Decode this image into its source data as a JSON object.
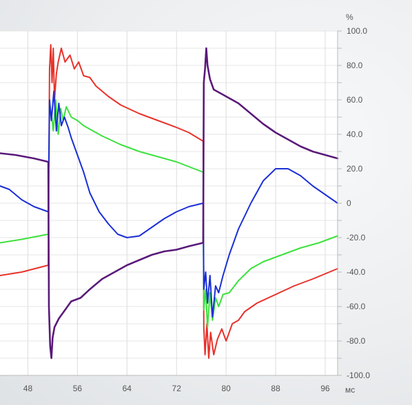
{
  "chart_data": {
    "type": "line",
    "title": "",
    "xlabel": "мс",
    "ylabel": "%",
    "xlim": [
      43.5,
      98
    ],
    "ylim": [
      -100,
      100
    ],
    "grid": true,
    "x_ticks": [
      48,
      56,
      64,
      72,
      80,
      88,
      96
    ],
    "x_tick_labels": [
      "48",
      "56",
      "64",
      "72",
      "80",
      "88",
      "96"
    ],
    "y_ticks": [
      100,
      80,
      60,
      40,
      20,
      0,
      -20,
      -40,
      -60,
      -80,
      -100
    ],
    "y_tick_labels": [
      "100.0",
      "80.0",
      "60.0",
      "40.0",
      "20.0",
      "0",
      "-20.0",
      "-40.0",
      "-60.0",
      "-80.0",
      "-100.0"
    ],
    "colors": {
      "red": "#e8322a",
      "green": "#3ce13c",
      "blue": "#1a2fd6",
      "purple": "#5a1a7a"
    },
    "series": [
      {
        "color_key": "red",
        "points": [
          [
            43.5,
            -42
          ],
          [
            47,
            -40
          ],
          [
            51.3,
            -36
          ],
          [
            51.5,
            78
          ],
          [
            51.7,
            92
          ],
          [
            51.9,
            70
          ],
          [
            52.1,
            90
          ],
          [
            52.3,
            60
          ],
          [
            52.6,
            75
          ],
          [
            52.9,
            82
          ],
          [
            53.4,
            90
          ],
          [
            54,
            82
          ],
          [
            54.8,
            86
          ],
          [
            55.5,
            78
          ],
          [
            56.2,
            82
          ],
          [
            57,
            74
          ],
          [
            58,
            73
          ],
          [
            59,
            68
          ],
          [
            61,
            62
          ],
          [
            63,
            57
          ],
          [
            66,
            52
          ],
          [
            69,
            48
          ],
          [
            72,
            44
          ],
          [
            74,
            41
          ],
          [
            76.3,
            36
          ],
          [
            76.4,
            -72
          ],
          [
            76.6,
            -88
          ],
          [
            76.9,
            -70
          ],
          [
            77.2,
            -90
          ],
          [
            77.5,
            -75
          ],
          [
            78,
            -88
          ],
          [
            78.6,
            -79
          ],
          [
            79.3,
            -73
          ],
          [
            80,
            -80
          ],
          [
            81,
            -70
          ],
          [
            82,
            -68
          ],
          [
            83,
            -63
          ],
          [
            85,
            -58
          ],
          [
            88,
            -53
          ],
          [
            91,
            -48
          ],
          [
            94,
            -44
          ],
          [
            98,
            -38
          ]
        ]
      },
      {
        "color_key": "green",
        "points": [
          [
            43.5,
            -23
          ],
          [
            47,
            -21
          ],
          [
            51.3,
            -18
          ],
          [
            51.5,
            58
          ],
          [
            51.8,
            52
          ],
          [
            52.1,
            42
          ],
          [
            52.5,
            60
          ],
          [
            52.9,
            40
          ],
          [
            53.3,
            55
          ],
          [
            53.7,
            48
          ],
          [
            54.2,
            56
          ],
          [
            55,
            50
          ],
          [
            56,
            48
          ],
          [
            57,
            45
          ],
          [
            58,
            43
          ],
          [
            60,
            39
          ],
          [
            63,
            34
          ],
          [
            66,
            30
          ],
          [
            69,
            27
          ],
          [
            72,
            24
          ],
          [
            76.3,
            18
          ],
          [
            76.4,
            -62
          ],
          [
            76.7,
            -50
          ],
          [
            77,
            -72
          ],
          [
            77.4,
            -52
          ],
          [
            77.8,
            -68
          ],
          [
            78.3,
            -55
          ],
          [
            78.8,
            -60
          ],
          [
            79.5,
            -53
          ],
          [
            80.5,
            -52
          ],
          [
            82,
            -45
          ],
          [
            84,
            -38
          ],
          [
            86,
            -34
          ],
          [
            89,
            -30
          ],
          [
            92,
            -26
          ],
          [
            95,
            -23
          ],
          [
            98,
            -19
          ]
        ]
      },
      {
        "color_key": "blue",
        "points": [
          [
            43.5,
            10
          ],
          [
            45,
            8
          ],
          [
            47,
            2
          ],
          [
            49,
            -2
          ],
          [
            51.3,
            -5
          ],
          [
            51.5,
            60
          ],
          [
            51.8,
            48
          ],
          [
            52.2,
            65
          ],
          [
            52.6,
            42
          ],
          [
            53,
            58
          ],
          [
            53.4,
            45
          ],
          [
            53.9,
            50
          ],
          [
            54.5,
            44
          ],
          [
            55,
            38
          ],
          [
            56,
            28
          ],
          [
            57,
            18
          ],
          [
            58,
            6
          ],
          [
            59.5,
            -5
          ],
          [
            61,
            -12
          ],
          [
            62.5,
            -18
          ],
          [
            64,
            -20
          ],
          [
            66,
            -19
          ],
          [
            68,
            -14
          ],
          [
            70,
            -9
          ],
          [
            72,
            -5
          ],
          [
            74,
            -2
          ],
          [
            76.3,
            0
          ],
          [
            76.4,
            -50
          ],
          [
            76.7,
            -40
          ],
          [
            77,
            -58
          ],
          [
            77.4,
            -42
          ],
          [
            77.8,
            -66
          ],
          [
            78.3,
            -48
          ],
          [
            78.8,
            -52
          ],
          [
            79.5,
            -42
          ],
          [
            80.5,
            -30
          ],
          [
            82,
            -15
          ],
          [
            84,
            0
          ],
          [
            86,
            13
          ],
          [
            88,
            20
          ],
          [
            90,
            20
          ],
          [
            92,
            16
          ],
          [
            94,
            10
          ],
          [
            96,
            5
          ],
          [
            98,
            0
          ]
        ]
      },
      {
        "color_key": "purple",
        "points": [
          [
            43.5,
            29
          ],
          [
            46,
            28
          ],
          [
            49,
            26
          ],
          [
            51.3,
            24
          ],
          [
            51.4,
            -60
          ],
          [
            51.6,
            -83
          ],
          [
            51.8,
            -90
          ],
          [
            52,
            -78
          ],
          [
            52.3,
            -72
          ],
          [
            53,
            -67
          ],
          [
            54,
            -62
          ],
          [
            55,
            -57
          ],
          [
            56.5,
            -55
          ],
          [
            58,
            -50
          ],
          [
            60,
            -44
          ],
          [
            62,
            -40
          ],
          [
            64,
            -36
          ],
          [
            66,
            -33
          ],
          [
            68,
            -30
          ],
          [
            70,
            -28
          ],
          [
            72,
            -27
          ],
          [
            74,
            -25
          ],
          [
            76.3,
            -23
          ],
          [
            76.4,
            70
          ],
          [
            76.6,
            78
          ],
          [
            76.8,
            90
          ],
          [
            77,
            80
          ],
          [
            77.4,
            72
          ],
          [
            78,
            66
          ],
          [
            80,
            62
          ],
          [
            82,
            58
          ],
          [
            84,
            52
          ],
          [
            86,
            46
          ],
          [
            88,
            41
          ],
          [
            90,
            37
          ],
          [
            92,
            33
          ],
          [
            94,
            30
          ],
          [
            96,
            28
          ],
          [
            98,
            26
          ]
        ]
      }
    ]
  }
}
